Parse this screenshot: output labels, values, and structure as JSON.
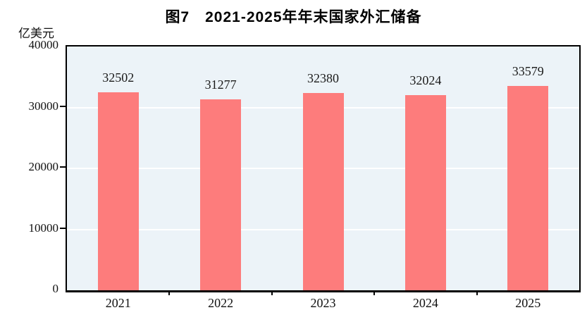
{
  "chart_data": {
    "type": "bar",
    "title": "图7　2021-2025年年末国家外汇储备",
    "ylabel": "亿美元",
    "xlabel": "",
    "categories": [
      "2021",
      "2022",
      "2023",
      "2024",
      "2025"
    ],
    "values": [
      32502,
      31277,
      32380,
      32024,
      33579
    ],
    "ylim": [
      0,
      40000
    ],
    "yticks": [
      0,
      10000,
      20000,
      30000,
      40000
    ],
    "gridlines_at": [
      10000,
      20000,
      30000
    ],
    "grid": "horizontal",
    "legend": "none",
    "colors": {
      "bar": "#FD7C7C",
      "plot_background": "#ECF3F8",
      "gridline": "#FFFFFF",
      "frame_border": "#000000",
      "text": "#111111"
    }
  }
}
